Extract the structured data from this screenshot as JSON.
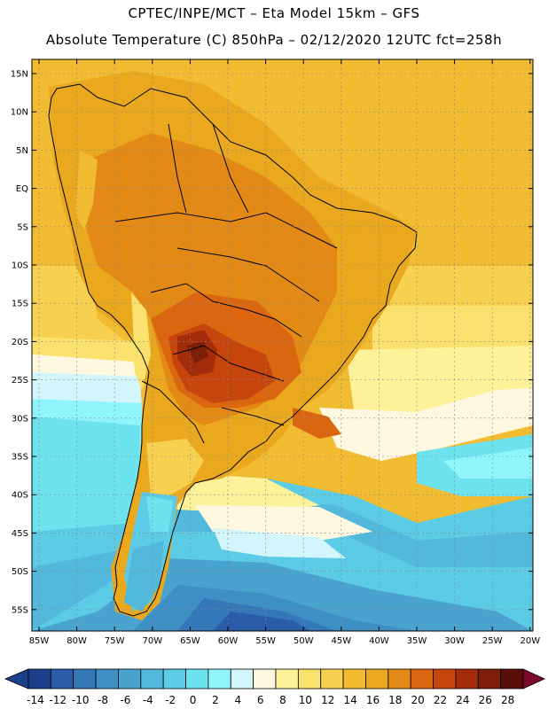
{
  "title_line1": "CPTEC/INPE/MCT –  Eta Model 15km – GFS",
  "title_line2": "Absolute Temperature (C) 850hPa – 02/12/2020 12UTC fct=258h",
  "lat_labels": [
    "15N",
    "10N",
    "5N",
    "EQ",
    "5S",
    "10S",
    "15S",
    "20S",
    "25S",
    "30S",
    "35S",
    "40S",
    "45S",
    "50S",
    "55S"
  ],
  "lon_labels": [
    "85W",
    "80W",
    "75W",
    "70W",
    "65W",
    "60W",
    "55W",
    "50W",
    "45W",
    "40W",
    "35W",
    "30W",
    "25W",
    "20W"
  ],
  "colorbar": {
    "colors": [
      "#1c3f8c",
      "#2a5ca8",
      "#3478b8",
      "#3d8fc4",
      "#4aa3cf",
      "#52b8dc",
      "#5ccbe5",
      "#6ee3f0",
      "#8ff4fb",
      "#d2f6fb",
      "#fff8e0",
      "#fdf19a",
      "#fbe16e",
      "#f7d04f",
      "#f1bc32",
      "#eaa81e",
      "#e38a16",
      "#db6610",
      "#c6450c",
      "#a32d0a",
      "#7d1f08",
      "#580f0c"
    ],
    "tick_labels": [
      "-14",
      "-12",
      "-10",
      "-8",
      "-6",
      "-4",
      "-2",
      "0",
      "2",
      "4",
      "6",
      "8",
      "10",
      "12",
      "14",
      "16",
      "18",
      "20",
      "22",
      "24",
      "26",
      "28"
    ]
  }
}
